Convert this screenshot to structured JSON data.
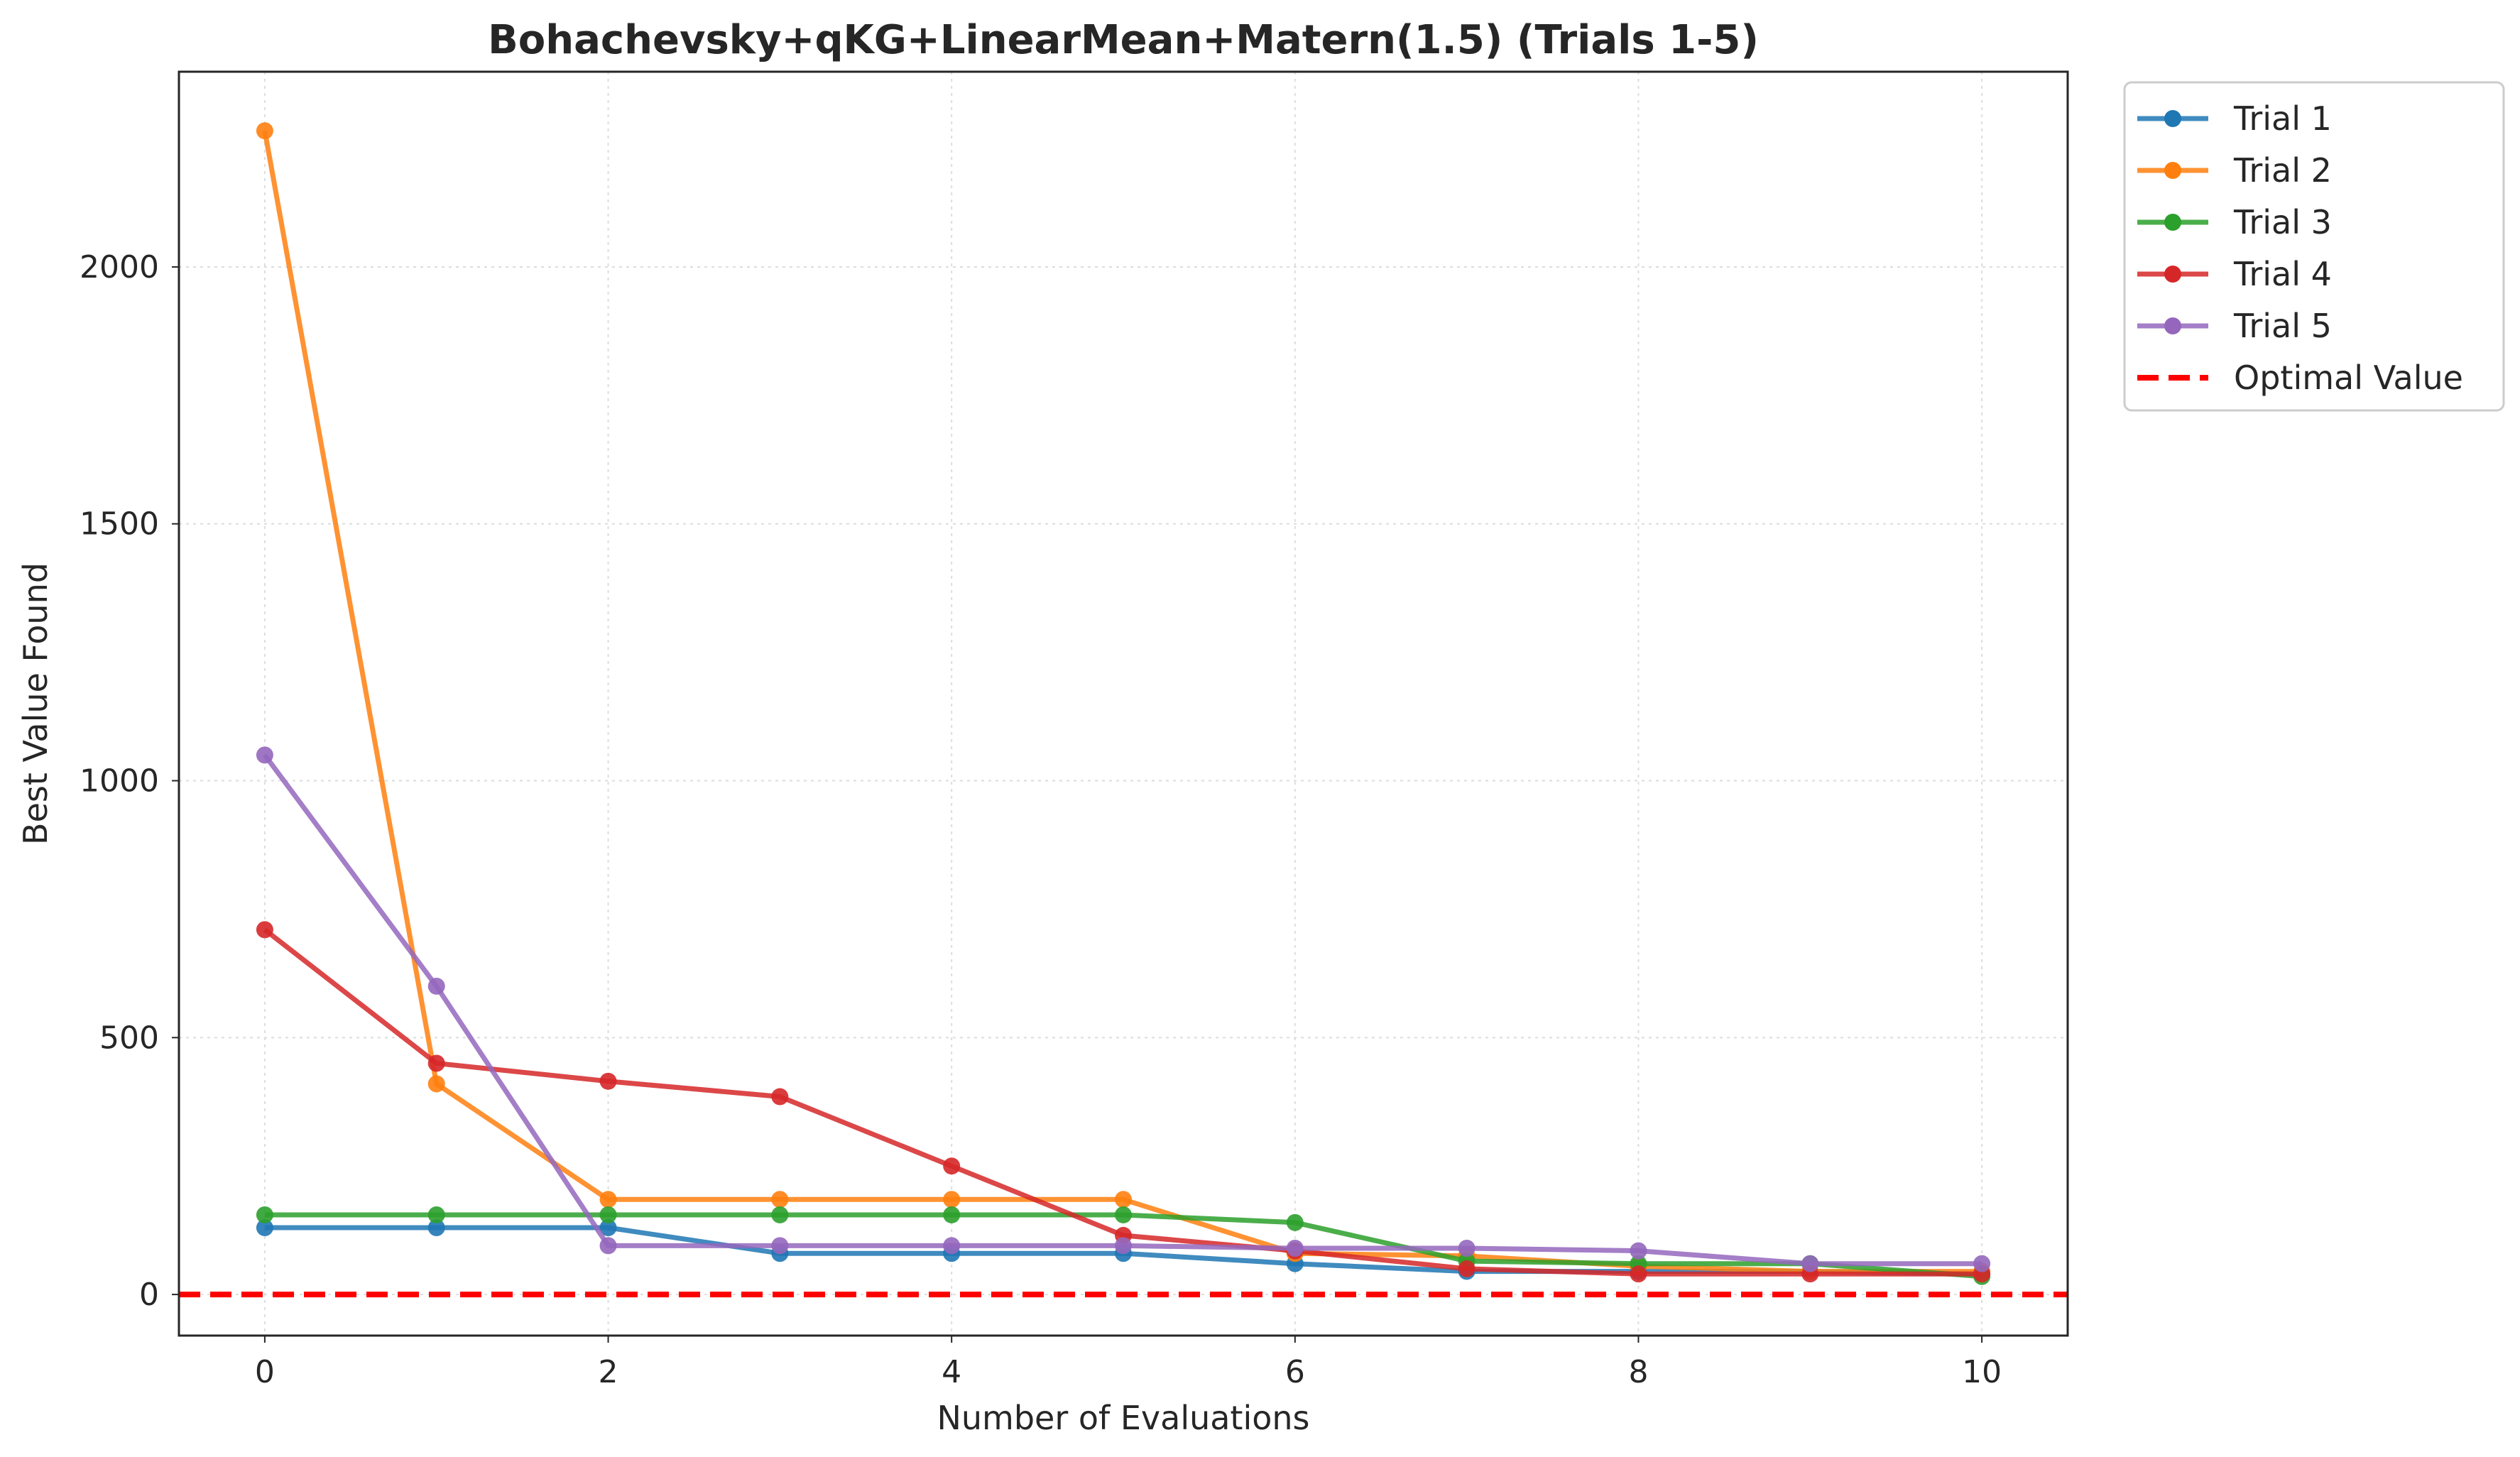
{
  "chart_data": {
    "type": "line",
    "title": "Bohachevsky+qKG+LinearMean+Matern(1.5) (Trials 1-5)",
    "xlabel": "Number of Evaluations",
    "ylabel": "Best Value Found",
    "xlim": [
      -0.5,
      10.5
    ],
    "ylim": [
      -80,
      2380
    ],
    "xticks": [
      0,
      2,
      4,
      6,
      8,
      10
    ],
    "yticks": [
      0,
      500,
      1000,
      1500,
      2000
    ],
    "grid": true,
    "legend_position": "outside upper right",
    "x": [
      0,
      1,
      2,
      3,
      4,
      5,
      6,
      7,
      8,
      9,
      10
    ],
    "series": [
      {
        "name": "Trial 1",
        "color": "#1f77b4",
        "values": [
          130,
          130,
          130,
          80,
          80,
          80,
          60,
          45,
          45,
          45,
          40
        ]
      },
      {
        "name": "Trial 2",
        "color": "#ff7f0e",
        "values": [
          2265,
          410,
          185,
          185,
          185,
          185,
          80,
          75,
          55,
          45,
          45
        ]
      },
      {
        "name": "Trial 3",
        "color": "#2ca02c",
        "values": [
          155,
          155,
          155,
          155,
          155,
          155,
          140,
          65,
          60,
          60,
          35
        ]
      },
      {
        "name": "Trial 4",
        "color": "#d62728",
        "values": [
          710,
          450,
          415,
          385,
          250,
          115,
          85,
          50,
          40,
          40,
          40
        ]
      },
      {
        "name": "Trial 5",
        "color": "#9467bd",
        "values": [
          1050,
          600,
          95,
          95,
          95,
          95,
          90,
          90,
          85,
          60,
          60
        ]
      }
    ],
    "reference_line": {
      "name": "Optimal Value",
      "value": 0,
      "color": "#ff0000",
      "style": "dashed"
    }
  }
}
